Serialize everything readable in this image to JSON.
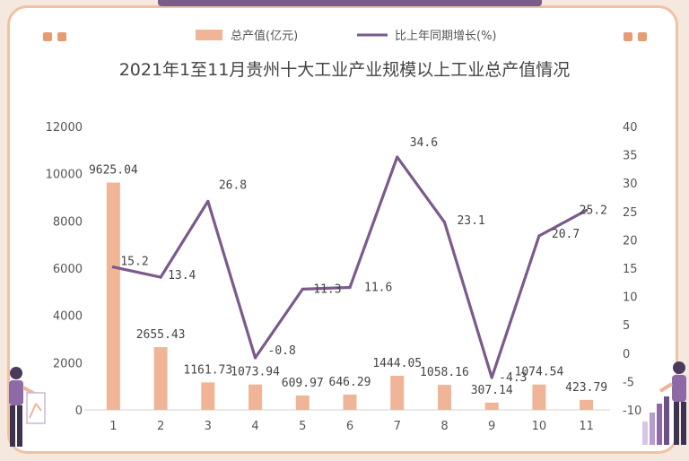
{
  "chart_data": {
    "type": "bar+line",
    "title": "2021年1至11月贵州十大工业产业规模以上工业总产值情况",
    "categories": [
      "1",
      "2",
      "3",
      "4",
      "5",
      "6",
      "7",
      "8",
      "9",
      "10",
      "11"
    ],
    "series": [
      {
        "name": "总产值(亿元)",
        "type": "bar",
        "axis": "left",
        "values": [
          9625.04,
          2655.43,
          1161.73,
          1073.94,
          609.97,
          646.29,
          1444.05,
          1058.16,
          307.14,
          1074.54,
          423.79
        ],
        "labels": [
          "9625.04",
          "2655.43",
          "1161.73",
          "1073.94",
          "609.97",
          "646.29",
          "1444.05",
          "1058.16",
          "307.14",
          "1074.54",
          "423.79"
        ]
      },
      {
        "name": "比上年同期增长(%)",
        "type": "line",
        "axis": "right",
        "values": [
          15.2,
          13.4,
          26.8,
          -0.8,
          11.3,
          11.6,
          34.6,
          23.1,
          -4.3,
          20.7,
          25.2
        ],
        "labels": [
          "15.2",
          "13.4",
          "26.8",
          "-0.8",
          "11.3",
          "11.6",
          "34.6",
          "23.1",
          "-4.3",
          "20.7",
          "25.2"
        ]
      }
    ],
    "y_left": {
      "range": [
        0,
        12000
      ],
      "ticks": [
        0,
        2000,
        4000,
        6000,
        8000,
        10000,
        12000
      ]
    },
    "y_right": {
      "range": [
        -10,
        40
      ],
      "ticks": [
        -10,
        -5,
        0,
        5,
        10,
        15,
        20,
        25,
        30,
        35,
        40
      ]
    },
    "legend_position": "top",
    "grid": false,
    "colors": {
      "bar": "#f0b497",
      "line": "#7b5a8c",
      "text": "#555555",
      "title": "#444444"
    }
  }
}
